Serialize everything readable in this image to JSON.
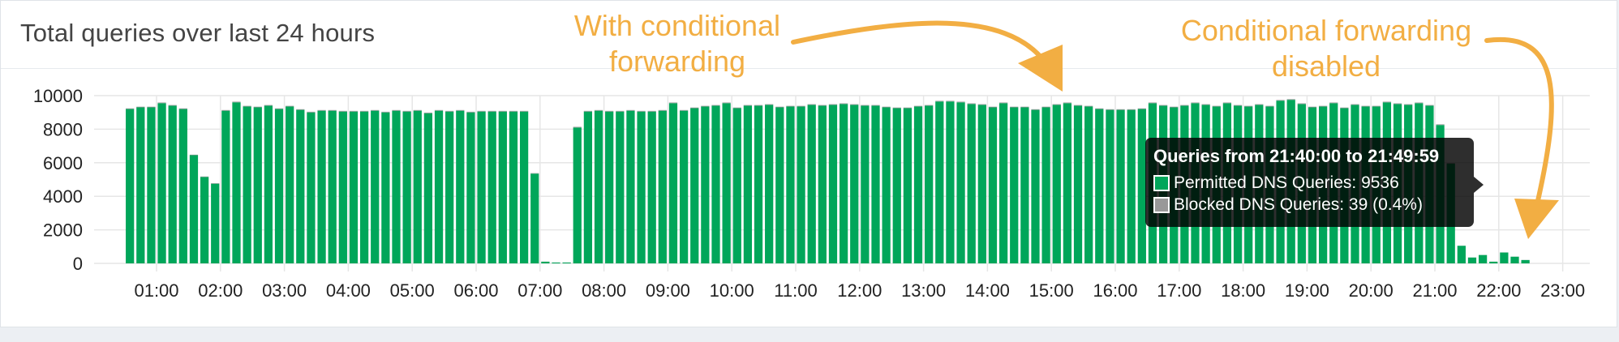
{
  "card": {
    "title": "Total queries over last 24 hours"
  },
  "annotations": {
    "with_cf": [
      "With conditional",
      "forwarding"
    ],
    "cf_disabled": [
      "Conditional forwarding",
      "disabled"
    ]
  },
  "tooltip": {
    "title": "Queries from 21:40:00 to 21:49:59",
    "rows": [
      {
        "label": "Permitted DNS Queries: 9536",
        "color": "#00a65a"
      },
      {
        "label": "Blocked DNS Queries: 39 (0.4%)",
        "color": "#999999"
      }
    ]
  },
  "colors": {
    "permitted": "#00a65a",
    "blocked": "#999999",
    "annotation": "#f2ae43",
    "grid": "#e6e6e6",
    "axis_text": "#222222"
  },
  "chart_data": {
    "type": "bar",
    "stacked": true,
    "interval_minutes": 10,
    "x_tick_labels": [
      "01:00",
      "02:00",
      "03:00",
      "04:00",
      "05:00",
      "06:00",
      "07:00",
      "08:00",
      "09:00",
      "10:00",
      "11:00",
      "12:00",
      "13:00",
      "14:00",
      "15:00",
      "16:00",
      "17:00",
      "18:00",
      "19:00",
      "20:00",
      "21:00",
      "22:00",
      "23:00"
    ],
    "y_tick_labels": [
      "0",
      "2000",
      "4000",
      "6000",
      "8000",
      "10000"
    ],
    "ylim": [
      0,
      10000
    ],
    "grid": true,
    "series": [
      {
        "name": "Permitted DNS Queries",
        "values": [
          9200,
          9300,
          9300,
          9550,
          9400,
          9200,
          6450,
          5150,
          4750,
          9100,
          9600,
          9350,
          9300,
          9400,
          9200,
          9350,
          9150,
          9000,
          9100,
          9100,
          9050,
          9050,
          9050,
          9100,
          9000,
          9100,
          9050,
          9100,
          8950,
          9100,
          9050,
          9100,
          9000,
          9050,
          9050,
          9050,
          9050,
          9050,
          5350,
          100,
          50,
          50,
          8100,
          9050,
          9100,
          9050,
          9050,
          9100,
          9050,
          9050,
          9100,
          9550,
          9100,
          9250,
          9350,
          9400,
          9550,
          9250,
          9400,
          9400,
          9450,
          9300,
          9350,
          9350,
          9450,
          9400,
          9450,
          9500,
          9450,
          9400,
          9400,
          9300,
          9250,
          9250,
          9350,
          9400,
          9650,
          9650,
          9600,
          9500,
          9450,
          9300,
          9550,
          9300,
          9300,
          9150,
          9300,
          9450,
          9550,
          9400,
          9350,
          9200,
          9150,
          9150,
          9150,
          9200,
          9550,
          9400,
          9300,
          9400,
          9550,
          9450,
          9350,
          9550,
          9400,
          9350,
          9450,
          9350,
          9700,
          9750,
          9500,
          9300,
          9350,
          9550,
          9250,
          9450,
          9350,
          9350,
          9600,
          9500,
          9450,
          9550,
          9400,
          8250,
          5950,
          1050,
          350,
          500,
          100,
          650,
          400,
          200
        ],
        "color": "#00a65a"
      },
      {
        "name": "Blocked DNS Queries",
        "values": [
          40,
          40,
          40,
          40,
          40,
          40,
          30,
          30,
          30,
          40,
          40,
          40,
          40,
          40,
          40,
          40,
          40,
          40,
          40,
          40,
          40,
          40,
          40,
          40,
          40,
          40,
          40,
          40,
          40,
          40,
          40,
          40,
          40,
          40,
          40,
          40,
          40,
          40,
          30,
          5,
          5,
          5,
          40,
          40,
          40,
          40,
          40,
          40,
          40,
          40,
          40,
          40,
          40,
          40,
          40,
          40,
          40,
          40,
          40,
          40,
          40,
          40,
          40,
          40,
          40,
          40,
          40,
          40,
          40,
          40,
          40,
          40,
          40,
          40,
          40,
          40,
          40,
          40,
          40,
          40,
          40,
          40,
          40,
          40,
          40,
          40,
          40,
          40,
          40,
          40,
          40,
          40,
          40,
          40,
          40,
          40,
          40,
          40,
          40,
          40,
          40,
          40,
          40,
          40,
          40,
          40,
          40,
          40,
          40,
          40,
          40,
          40,
          40,
          40,
          40,
          40,
          40,
          40,
          40,
          40,
          40,
          39,
          40,
          40,
          30,
          5,
          5,
          5,
          5,
          5,
          5,
          5
        ],
        "color": "#999999"
      }
    ]
  }
}
